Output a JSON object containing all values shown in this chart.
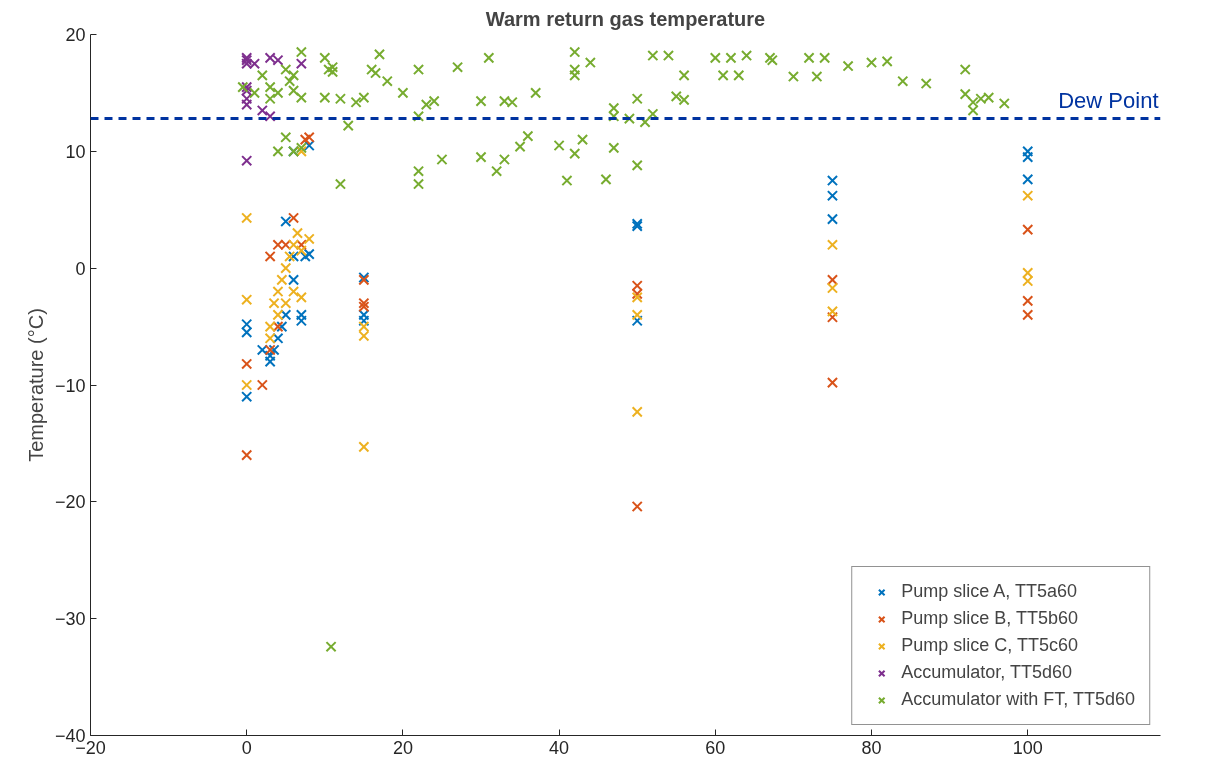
{
  "chart_data": {
    "type": "scatter",
    "title": "Warm return gas temperature",
    "ylabel": "Temperature (°C)",
    "xlim": [
      -20,
      117
    ],
    "ylim": [
      -40,
      20
    ],
    "xticks": [
      -20,
      0,
      20,
      40,
      60,
      80,
      100
    ],
    "yticks": [
      -40,
      -30,
      -20,
      -10,
      0,
      10,
      20
    ],
    "marker": "cross",
    "grid": false,
    "legend": "bottom right",
    "ref_lines": [
      {
        "axis": "y",
        "value": 12.8,
        "label": "Dew Point",
        "color": "#0033a0",
        "line_style": "dashed"
      }
    ],
    "series": [
      {
        "name": "Pump slice A, TT5a60",
        "color": "#0072bd",
        "x": [
          0,
          0,
          0,
          2,
          3,
          3,
          3.5,
          4,
          4.5,
          5,
          5,
          6,
          6,
          7,
          7,
          7.5,
          8,
          6,
          8,
          15,
          15,
          15,
          50,
          50,
          50,
          75,
          75,
          75,
          100,
          100,
          100
        ],
        "values": [
          -11,
          -5.5,
          -4.8,
          -7,
          -7.5,
          -8,
          -7,
          -6,
          -5,
          -4,
          4,
          -1,
          1,
          -4.5,
          -4,
          1,
          1.2,
          10,
          10.5,
          -0.8,
          -4.5,
          -4,
          3.8,
          3.6,
          -4.5,
          7.5,
          6.2,
          4.2,
          10,
          9.5,
          7.6
        ]
      },
      {
        "name": "Pump slice B, TT5b60",
        "color": "#d95319",
        "x": [
          0,
          0,
          2,
          3,
          4,
          3,
          4,
          5,
          6,
          7,
          8,
          7.5,
          15,
          15,
          15,
          50,
          50,
          50,
          75,
          75,
          75,
          100,
          100,
          100
        ],
        "values": [
          -16,
          -8.2,
          -10,
          -7,
          -5,
          1,
          2,
          2,
          4.3,
          2,
          11.2,
          11,
          -1,
          -3,
          -3.3,
          -1.5,
          -2.2,
          -20.4,
          -1,
          -4.2,
          -9.8,
          3.3,
          -2.8,
          -4
        ]
      },
      {
        "name": "Pump slice C, TT5c60",
        "color": "#edb120",
        "x": [
          0,
          0,
          0,
          3,
          3.5,
          4,
          4.5,
          5,
          5.5,
          6,
          6.5,
          7,
          7,
          8,
          3,
          4,
          5,
          6,
          7,
          15,
          15,
          15,
          50,
          50,
          50,
          75,
          75,
          75,
          100,
          100,
          100
        ],
        "values": [
          4.3,
          -2.7,
          -10,
          -5,
          -3,
          -2,
          -1,
          0,
          1,
          2,
          3,
          -2.5,
          1.5,
          2.5,
          -6,
          -4,
          -3,
          -2,
          10,
          -5,
          -5.8,
          -15.3,
          -2.5,
          -4,
          -12.3,
          2,
          -1.7,
          -3.7,
          6.2,
          -0.4,
          -1.1
        ]
      },
      {
        "name": "Accumulator, TT5d60",
        "color": "#7e2f8e",
        "x": [
          0,
          0,
          0,
          0,
          0,
          0,
          0,
          1,
          3,
          4,
          2,
          3,
          7,
          0
        ],
        "values": [
          18,
          17.5,
          17.8,
          15.5,
          14.5,
          14,
          9.2,
          17.5,
          18,
          17.8,
          13.5,
          13,
          17.5,
          15.2
        ]
      },
      {
        "name": "Accumulator with FT, TT5d60",
        "color": "#77ac30",
        "x": [
          -0.5,
          1,
          2,
          3,
          4,
          5,
          6,
          7,
          5.5,
          6,
          3,
          7,
          10,
          10,
          10.5,
          11,
          11,
          12,
          13,
          14,
          15,
          16,
          17,
          16.5,
          18,
          20,
          22,
          22,
          23,
          24,
          27,
          30,
          31,
          33,
          34,
          37,
          42,
          42,
          42,
          44,
          47,
          47,
          49,
          50,
          51,
          52,
          52,
          54,
          55,
          56,
          56,
          60,
          61,
          62,
          63,
          64,
          67,
          67.3,
          70,
          72,
          73,
          74,
          77,
          80,
          82,
          84,
          87,
          92,
          92,
          93,
          93,
          94,
          95,
          97,
          4,
          5,
          6,
          7,
          12,
          22,
          22,
          25,
          30,
          32,
          33,
          35,
          36,
          40,
          41,
          42,
          43,
          46,
          47,
          50,
          10.8
        ],
        "values": [
          15.5,
          15,
          16.5,
          15.5,
          15,
          17,
          16.5,
          18.5,
          16,
          15.2,
          14.5,
          14.6,
          14.6,
          18,
          17,
          16.8,
          17.2,
          14.5,
          12.2,
          14.2,
          14.6,
          17,
          18.3,
          16.7,
          16,
          15,
          13,
          17,
          14,
          14.3,
          17.2,
          14.3,
          18,
          14.3,
          14.2,
          15,
          18.5,
          17,
          16.5,
          17.6,
          13.7,
          13,
          12.8,
          14.5,
          12.5,
          13.2,
          18.2,
          18.2,
          14.7,
          16.5,
          14.4,
          18,
          16.5,
          18,
          16.5,
          18.2,
          18,
          17.8,
          16.4,
          18,
          16.4,
          18,
          17.3,
          17.6,
          17.7,
          16,
          15.8,
          17,
          14.9,
          14.2,
          13.5,
          14.5,
          14.6,
          14.1,
          10,
          11.2,
          10,
          10.3,
          7.2,
          7.2,
          8.3,
          9.3,
          9.5,
          8.3,
          9.3,
          10.4,
          11.3,
          10.5,
          7.5,
          9.8,
          11,
          7.6,
          10.3,
          8.8,
          -32.4
        ]
      }
    ]
  }
}
